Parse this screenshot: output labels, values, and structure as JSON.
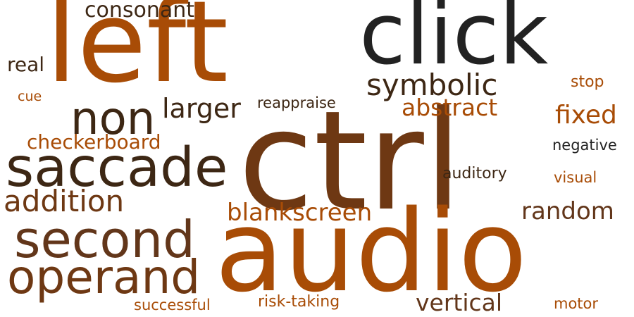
{
  "words": [
    {
      "text": "ctrl",
      "color": "#6e3813"
    },
    {
      "text": "audio",
      "color": "#a84c06"
    },
    {
      "text": "left",
      "color": "#a84c06"
    },
    {
      "text": "click",
      "color": "#222222"
    },
    {
      "text": "saccade",
      "color": "#3d2714"
    },
    {
      "text": "second",
      "color": "#62361a"
    },
    {
      "text": "operand",
      "color": "#6e3813"
    },
    {
      "text": "non",
      "color": "#3d2714"
    },
    {
      "text": "addition",
      "color": "#6e3813"
    },
    {
      "text": "symbolic",
      "color": "#3d2714"
    },
    {
      "text": "larger",
      "color": "#3d2714"
    },
    {
      "text": "abstract",
      "color": "#a84c06"
    },
    {
      "text": "fixed",
      "color": "#a84c06"
    },
    {
      "text": "blankscreen",
      "color": "#a84c06"
    },
    {
      "text": "random",
      "color": "#62361a"
    },
    {
      "text": "vertical",
      "color": "#62361a"
    },
    {
      "text": "consonant",
      "color": "#3d2714"
    },
    {
      "text": "checkerboard",
      "color": "#a84c06"
    },
    {
      "text": "real",
      "color": "#3d2714"
    },
    {
      "text": "auditory",
      "color": "#3d2714"
    },
    {
      "text": "reappraise",
      "color": "#3d2714"
    },
    {
      "text": "negative",
      "color": "#222222"
    },
    {
      "text": "risk-taking",
      "color": "#a84c06"
    },
    {
      "text": "successful",
      "color": "#a84c06"
    },
    {
      "text": "stop",
      "color": "#a84c06"
    },
    {
      "text": "visual",
      "color": "#a84c06"
    },
    {
      "text": "motor",
      "color": "#a84c06"
    },
    {
      "text": "cue",
      "color": "#a84c06"
    }
  ]
}
